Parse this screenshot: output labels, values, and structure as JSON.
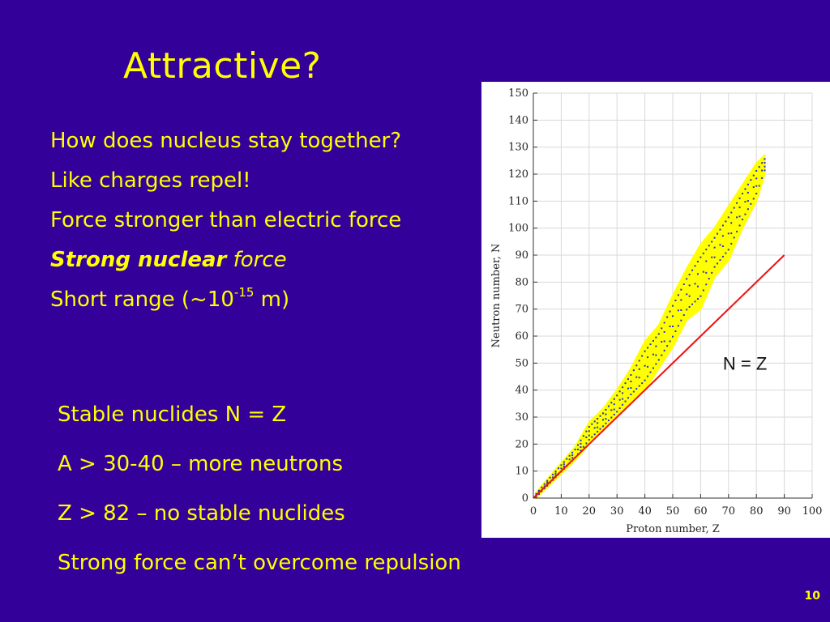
{
  "slide": {
    "title": "Attractive?",
    "page_number": "10",
    "bullets_top": [
      {
        "text": "How does nucleus stay together?"
      },
      {
        "text": "Like charges repel!"
      },
      {
        "text": "Force stronger than electric force"
      },
      {
        "strong": "Strong nuclear",
        "rest": " force"
      },
      {
        "pre": "Short range (~10",
        "sup": "-15",
        "post": " m)"
      }
    ],
    "bullets_bottom": [
      "Stable nuclides N = Z",
      "A > 30-40 – more neutrons",
      "Z > 82 – no stable nuclides",
      "Strong force can’t overcome repulsion"
    ]
  },
  "colors": {
    "background": "#330099",
    "text": "#ffff00",
    "band": "#ffff00",
    "points": "#2233cc",
    "line": "#ee1111"
  },
  "chart_data": {
    "type": "scatter",
    "xlabel": "Proton number, Z",
    "ylabel": "Neutron number, N",
    "xlim": [
      0,
      100
    ],
    "ylim": [
      0,
      150
    ],
    "xticks": [
      0,
      10,
      20,
      30,
      40,
      50,
      60,
      70,
      80,
      90,
      100
    ],
    "yticks": [
      0,
      10,
      20,
      30,
      40,
      50,
      60,
      70,
      80,
      90,
      100,
      110,
      120,
      130,
      140,
      150
    ],
    "grid": true,
    "band_of_stability": [
      {
        "z": 1,
        "n_min": 0,
        "n_max": 2
      },
      {
        "z": 5,
        "n_min": 4,
        "n_max": 7
      },
      {
        "z": 10,
        "n_min": 9,
        "n_max": 13
      },
      {
        "z": 15,
        "n_min": 14,
        "n_max": 19
      },
      {
        "z": 20,
        "n_min": 20,
        "n_max": 28
      },
      {
        "z": 25,
        "n_min": 25,
        "n_max": 33
      },
      {
        "z": 30,
        "n_min": 30,
        "n_max": 40
      },
      {
        "z": 35,
        "n_min": 36,
        "n_max": 48
      },
      {
        "z": 40,
        "n_min": 40,
        "n_max": 58
      },
      {
        "z": 45,
        "n_min": 48,
        "n_max": 64
      },
      {
        "z": 50,
        "n_min": 56,
        "n_max": 75
      },
      {
        "z": 55,
        "n_min": 66,
        "n_max": 85
      },
      {
        "z": 60,
        "n_min": 70,
        "n_max": 94
      },
      {
        "z": 65,
        "n_min": 82,
        "n_max": 100
      },
      {
        "z": 70,
        "n_min": 88,
        "n_max": 108
      },
      {
        "z": 75,
        "n_min": 100,
        "n_max": 116
      },
      {
        "z": 80,
        "n_min": 110,
        "n_max": 124
      },
      {
        "z": 83,
        "n_min": 120,
        "n_max": 127
      }
    ],
    "reference_line": {
      "label": "N = Z",
      "from": [
        0,
        0
      ],
      "to": [
        90,
        90
      ],
      "label_at": [
        68,
        50
      ]
    }
  }
}
